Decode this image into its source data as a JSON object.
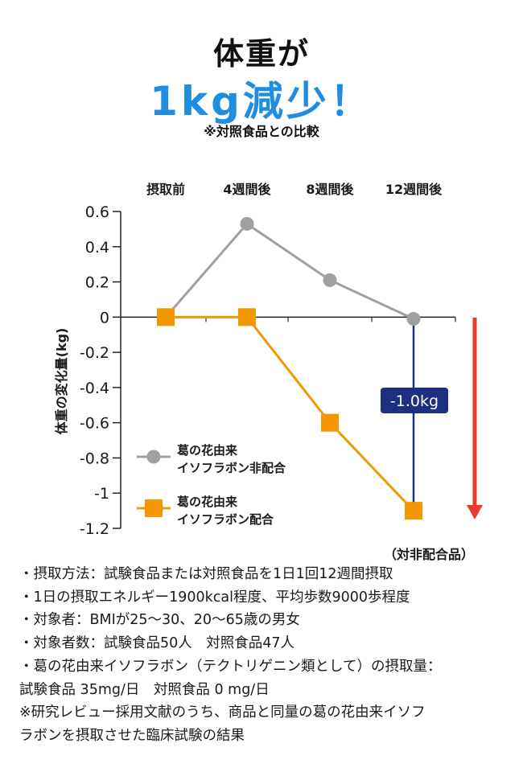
{
  "header": {
    "line1": "体重が",
    "line2": "1kg減少！",
    "note": "※対照食品との比較"
  },
  "chart_data": {
    "type": "line",
    "categories": [
      "摂取前",
      "4週間後",
      "8週間後",
      "12週間後"
    ],
    "ylabel": "体重の変化量(kg)",
    "ylim": [
      -1.2,
      0.6
    ],
    "yticks": [
      {
        "v": 0.6,
        "label": "0.6"
      },
      {
        "v": 0.4,
        "label": "0.4"
      },
      {
        "v": 0.2,
        "label": "0.2"
      },
      {
        "v": 0,
        "label": "0"
      },
      {
        "v": -0.2,
        "label": "-0.2"
      },
      {
        "v": -0.4,
        "label": "-0.4"
      },
      {
        "v": -0.6,
        "label": "-0.6"
      },
      {
        "v": -0.8,
        "label": "-0.8"
      },
      {
        "v": -1,
        "label": "-1"
      },
      {
        "v": -1.2,
        "label": "-1.2"
      }
    ],
    "grid": false,
    "series": [
      {
        "name": "葛の花由来\nイソフラボン非配合",
        "values": [
          0,
          0.53,
          0.21,
          -0.01
        ],
        "color": "#a0a0a0",
        "marker": "circle"
      },
      {
        "name": "葛の花由来\nイソフラボン配合",
        "values": [
          0,
          0,
          -0.6,
          -1.1
        ],
        "color": "#f39800",
        "marker": "square"
      }
    ],
    "annotations": {
      "difference_label": "-1.0kg",
      "difference_color": "#1c2f80",
      "arrow_color": "#e8392c",
      "comparison_label": "（対非配合品）"
    }
  },
  "notes": [
    "・摂取方法：試験食品または対照食品を1日1回12週間摂取",
    "・1日の摂取エネルギー1900kcal程度、平均歩数9000歩程度",
    "・対象者：BMIが25～30、20～65歳の男女",
    "・対象者数：試験食品50人　対照食品47人",
    "・葛の花由来イソフラボン（テクトリゲニン類として）の摂取量：",
    "試験食品 35mg/日　対照食品 0 mg/日",
    "※研究レビュー採用文献のうち、商品と同量の葛の花由来イソフ",
    "ラボンを摂取させた臨床試験の結果"
  ]
}
